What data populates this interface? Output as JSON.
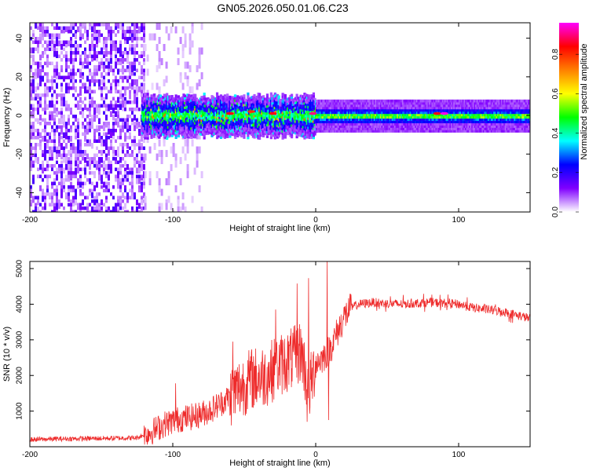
{
  "figure_title": "GN05.2026.050.01.06.C23",
  "chart_data": [
    {
      "type": "heatmap",
      "title": "GN05.2026.050.01.06.C23",
      "xlabel": "Height of straight line (km)",
      "ylabel": "Frequency (Hz)",
      "xlim": [
        -200,
        150
      ],
      "ylim": [
        -50,
        48
      ],
      "xticks": [
        -200,
        -100,
        0,
        100
      ],
      "yticks": [
        -40,
        -20,
        0,
        20,
        40
      ],
      "colorbar": {
        "label": "Normalized spectral amplitude",
        "range": [
          0.0,
          0.96
        ],
        "ticks": [
          0.0,
          0.2,
          0.4,
          0.6,
          0.8
        ],
        "tick_labels": [
          "0.0",
          "0.2",
          "0.4",
          "0.6",
          "0.8"
        ],
        "colormap_stops": [
          "#ffffff",
          "#8000ff",
          "#0000ff",
          "#00ffff",
          "#00ff00",
          "#ffff00",
          "#ff8000",
          "#ff0000",
          "#ff00ff"
        ]
      },
      "regions": [
        {
          "x_range": [
            -200,
            -120
          ],
          "description_value": 0.12,
          "freq_spread_hz": 48
        },
        {
          "x_range": [
            -120,
            -80
          ],
          "description_value": 0.05,
          "freq_spread_hz": 48
        },
        {
          "x_range": [
            -122,
            0
          ],
          "description_value": 0.45,
          "freq_spread_hz": 6
        },
        {
          "x_range": [
            0,
            150
          ],
          "description_value": 0.5,
          "freq_spread_hz": 4
        }
      ],
      "band_center_hz": 0,
      "hotspots": [
        {
          "x": -60,
          "y": 1,
          "v": 0.85
        },
        {
          "x": -45,
          "y": 2,
          "v": 0.8
        },
        {
          "x": -30,
          "y": 1,
          "v": 0.85
        },
        {
          "x": -2,
          "y": 1,
          "v": 0.9
        },
        {
          "x": 85,
          "y": 1,
          "v": 0.85
        },
        {
          "x": 90,
          "y": 1,
          "v": 0.95
        }
      ]
    },
    {
      "type": "line",
      "xlabel": "Height of straight line (km)",
      "ylabel": "SNR (10 * v/v)",
      "xlim": [
        -200,
        150
      ],
      "ylim": [
        0,
        5200
      ],
      "xticks": [
        -200,
        -100,
        0,
        100
      ],
      "yticks": [
        1000,
        2000,
        3000,
        4000,
        5000
      ],
      "color": "#ee2b2b",
      "series": [
        {
          "name": "SNR",
          "x": [
            -200,
            -180,
            -160,
            -140,
            -125,
            -115,
            -105,
            -95,
            -85,
            -75,
            -65,
            -55,
            -45,
            -35,
            -25,
            -15,
            -10,
            -5,
            0,
            5,
            10,
            15,
            20,
            25,
            30,
            40,
            50,
            60,
            70,
            80,
            90,
            100,
            110,
            120,
            130,
            140,
            150
          ],
          "values": [
            200,
            220,
            230,
            240,
            250,
            420,
            650,
            780,
            850,
            1000,
            1250,
            1600,
            1900,
            2000,
            2300,
            2500,
            2700,
            1500,
            2350,
            2500,
            2750,
            3200,
            3650,
            3900,
            4000,
            4050,
            4020,
            4000,
            4030,
            4050,
            4030,
            4000,
            3900,
            3850,
            3800,
            3700,
            3600
          ]
        }
      ],
      "spikes": [
        {
          "x": -98,
          "value": 1780
        },
        {
          "x": -58,
          "value": 2950
        },
        {
          "x": -28,
          "value": 3850
        },
        {
          "x": -13,
          "value": 4580
        },
        {
          "x": -5,
          "value": 4730
        },
        {
          "x": 8,
          "value": 5200
        }
      ],
      "dips": [
        {
          "x": -6,
          "value": 700
        },
        {
          "x": 9,
          "value": 750
        }
      ]
    }
  ]
}
